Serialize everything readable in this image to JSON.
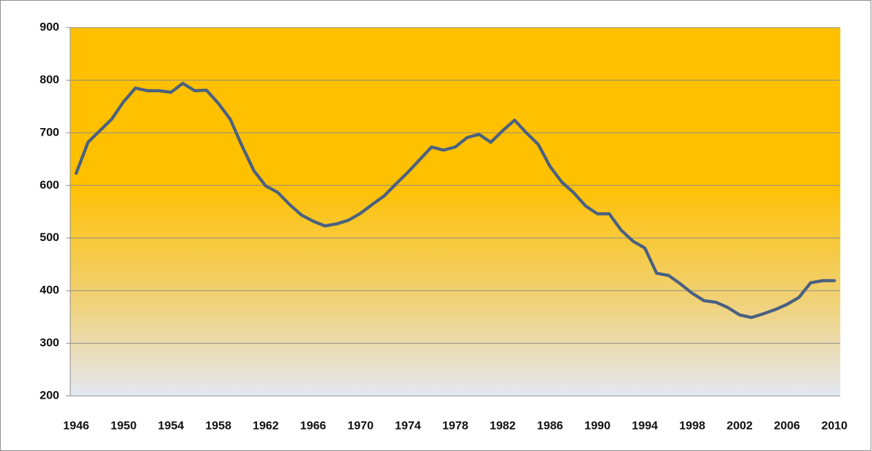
{
  "chart_data": {
    "type": "line",
    "x": [
      1946,
      1947,
      1948,
      1949,
      1950,
      1951,
      1952,
      1953,
      1954,
      1955,
      1956,
      1957,
      1958,
      1959,
      1960,
      1961,
      1962,
      1963,
      1964,
      1965,
      1966,
      1967,
      1968,
      1969,
      1970,
      1971,
      1972,
      1973,
      1974,
      1975,
      1976,
      1977,
      1978,
      1979,
      1980,
      1981,
      1982,
      1983,
      1984,
      1985,
      1986,
      1987,
      1988,
      1989,
      1990,
      1991,
      1992,
      1993,
      1994,
      1995,
      1996,
      1997,
      1998,
      1999,
      2000,
      2001,
      2002,
      2003,
      2004,
      2005,
      2006,
      2007,
      2008,
      2009,
      2010
    ],
    "values": [
      623,
      682,
      704,
      726,
      759,
      785,
      780,
      780,
      777,
      794,
      780,
      781,
      756,
      726,
      675,
      628,
      599,
      587,
      564,
      544,
      532,
      523,
      527,
      534,
      547,
      564,
      580,
      603,
      625,
      649,
      673,
      667,
      673,
      691,
      697,
      682,
      704,
      724,
      700,
      678,
      636,
      606,
      586,
      561,
      546,
      546,
      515,
      494,
      481,
      433,
      429,
      413,
      395,
      381,
      378,
      368,
      354,
      349,
      356,
      364,
      374,
      387,
      415,
      419,
      419
    ],
    "color": "#4a6180",
    "xlim": [
      1945.5,
      2010.5
    ],
    "xticks": [
      1946,
      1950,
      1954,
      1958,
      1962,
      1966,
      1970,
      1974,
      1978,
      1982,
      1986,
      1990,
      1994,
      1998,
      2002,
      2006,
      2010
    ],
    "ylim": [
      200,
      900
    ],
    "yticks": [
      200,
      300,
      400,
      500,
      600,
      700,
      800,
      900
    ],
    "grid": true
  }
}
